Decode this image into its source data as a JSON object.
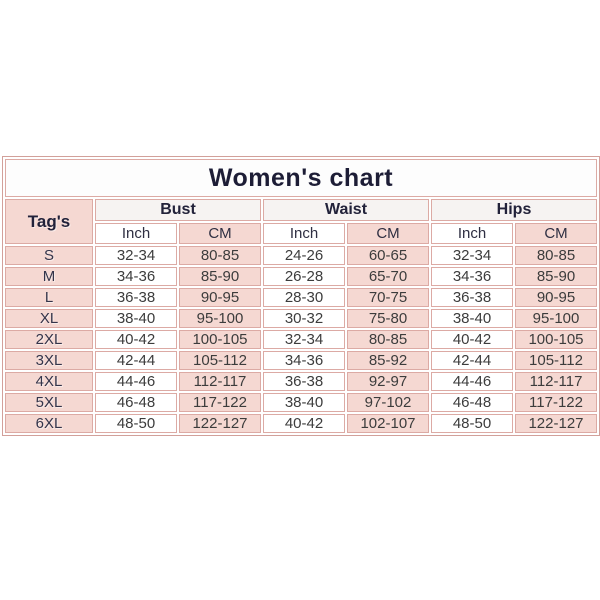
{
  "chart_data": {
    "type": "table",
    "title": "Women's chart",
    "corner_header": "Tag's",
    "group_headers": [
      "Bust",
      "Waist",
      "Hips"
    ],
    "unit_headers": [
      "Inch",
      "CM",
      "Inch",
      "CM",
      "Inch",
      "CM"
    ],
    "columns": [
      "Tag's",
      "Bust Inch",
      "Bust CM",
      "Waist Inch",
      "Waist CM",
      "Hips Inch",
      "Hips CM"
    ],
    "rows": [
      {
        "size": "S",
        "values": [
          "32-34",
          "80-85",
          "24-26",
          "60-65",
          "32-34",
          "80-85"
        ]
      },
      {
        "size": "M",
        "values": [
          "34-36",
          "85-90",
          "26-28",
          "65-70",
          "34-36",
          "85-90"
        ]
      },
      {
        "size": "L",
        "values": [
          "36-38",
          "90-95",
          "28-30",
          "70-75",
          "36-38",
          "90-95"
        ]
      },
      {
        "size": "XL",
        "values": [
          "38-40",
          "95-100",
          "30-32",
          "75-80",
          "38-40",
          "95-100"
        ]
      },
      {
        "size": "2XL",
        "values": [
          "40-42",
          "100-105",
          "32-34",
          "80-85",
          "40-42",
          "100-105"
        ]
      },
      {
        "size": "3XL",
        "values": [
          "42-44",
          "105-112",
          "34-36",
          "85-92",
          "42-44",
          "105-112"
        ]
      },
      {
        "size": "4XL",
        "values": [
          "44-46",
          "112-117",
          "36-38",
          "92-97",
          "44-46",
          "112-117"
        ]
      },
      {
        "size": "5XL",
        "values": [
          "46-48",
          "117-122",
          "38-40",
          "97-102",
          "46-48",
          "117-122"
        ]
      },
      {
        "size": "6XL",
        "values": [
          "48-50",
          "122-127",
          "40-42",
          "102-107",
          "48-50",
          "122-127"
        ]
      }
    ],
    "layout": {
      "cell_fill_alternation": "inch-white, cm-pink",
      "grid": "on"
    }
  },
  "style": {
    "page_background": "#ffffff",
    "pink_cell": "#f5d8d2",
    "border_color": "#dcaaa4",
    "title_color": "#1d1d36",
    "data_text_color": "#3c3c3c"
  }
}
